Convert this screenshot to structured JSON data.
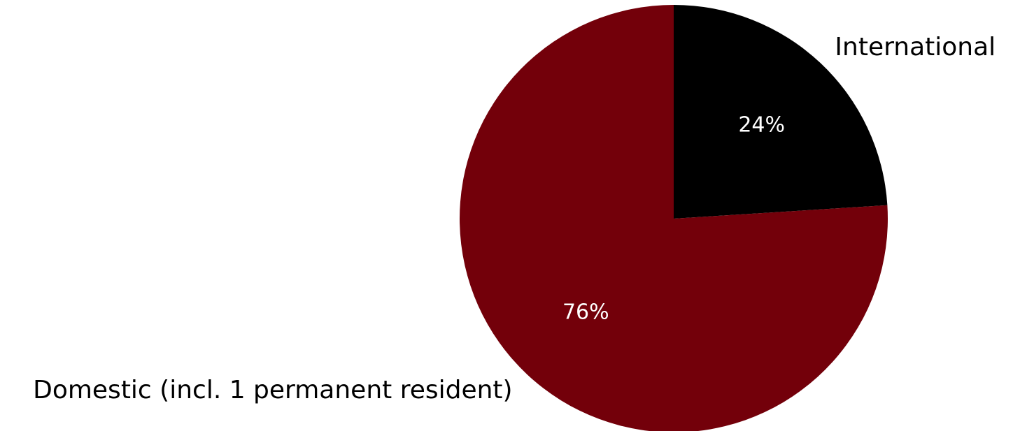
{
  "chart_data": {
    "type": "pie",
    "start": "12 o'clock",
    "direction": "clockwise",
    "slices": [
      {
        "label": "International",
        "value": 24,
        "pct_label": "24%",
        "color": "#000000"
      },
      {
        "label": "Domestic (incl. 1 permanent resident)",
        "value": 76,
        "pct_label": "76%",
        "color": "#73000a"
      }
    ]
  }
}
